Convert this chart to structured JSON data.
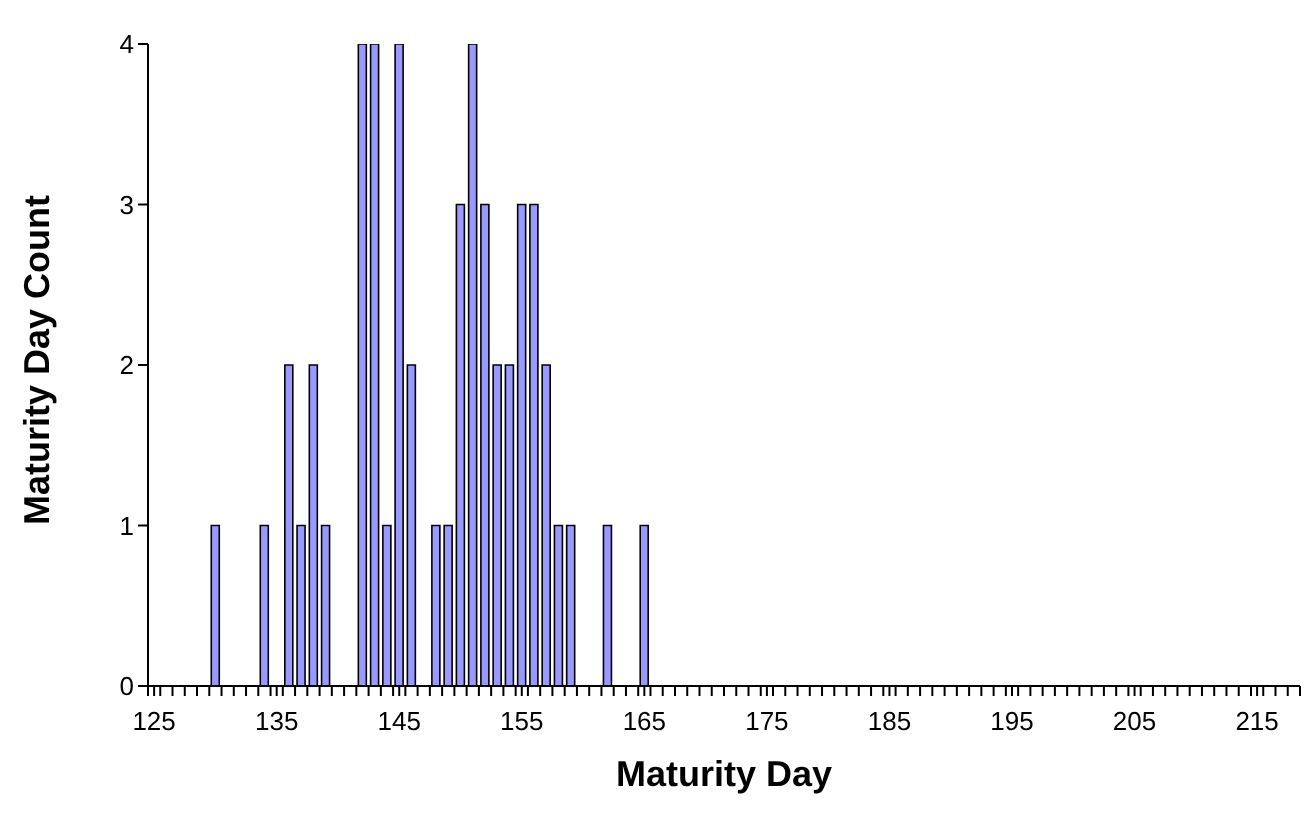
{
  "chart_data": {
    "type": "bar",
    "xlabel": "Maturity Day",
    "ylabel": "Maturity Day Count",
    "color": "#9999ff",
    "x": [
      130,
      134,
      136,
      137,
      138,
      139,
      142,
      143,
      144,
      145,
      146,
      148,
      149,
      150,
      151,
      152,
      153,
      154,
      155,
      156,
      157,
      158,
      159,
      162,
      165
    ],
    "values": [
      1,
      1,
      2,
      1,
      2,
      1,
      4,
      4,
      1,
      4,
      2,
      1,
      1,
      3,
      4,
      3,
      2,
      2,
      3,
      3,
      2,
      1,
      1,
      1,
      1
    ],
    "xlim": [
      124.5,
      218.5
    ],
    "xticks": [
      125,
      135,
      145,
      155,
      165,
      175,
      185,
      195,
      205,
      215,
      {
        "value": 124.5,
        "label": null
      },
      {
        "value": 125.5,
        "label": null
      },
      {
        "value": 126.5,
        "label": null
      },
      {
        "value": 127.5,
        "label": null
      },
      {
        "value": 128.5,
        "label": null
      },
      {
        "value": 129.5,
        "label": null
      },
      {
        "value": 130.5,
        "label": null
      },
      {
        "value": 131.5,
        "label": null
      },
      {
        "value": 132.5,
        "label": null
      },
      {
        "value": 133.5,
        "label": null
      },
      {
        "value": 134.5,
        "label": null
      },
      {
        "value": 135.5,
        "label": null
      },
      {
        "value": 136.5,
        "label": null
      },
      {
        "value": 137.5,
        "label": null
      },
      {
        "value": 138.5,
        "label": null
      },
      {
        "value": 139.5,
        "label": null
      },
      {
        "value": 140.5,
        "label": null
      },
      {
        "value": 141.5,
        "label": null
      },
      {
        "value": 142.5,
        "label": null
      },
      {
        "value": 143.5,
        "label": null
      },
      {
        "value": 144.5,
        "label": null
      },
      {
        "value": 145.5,
        "label": null
      },
      {
        "value": 146.5,
        "label": null
      },
      {
        "value": 147.5,
        "label": null
      },
      {
        "value": 148.5,
        "label": null
      },
      {
        "value": 149.5,
        "label": null
      },
      {
        "value": 150.5,
        "label": null
      },
      {
        "value": 151.5,
        "label": null
      },
      {
        "value": 152.5,
        "label": null
      },
      {
        "value": 153.5,
        "label": null
      },
      {
        "value": 154.5,
        "label": null
      },
      {
        "value": 155.5,
        "label": null
      },
      {
        "value": 156.5,
        "label": null
      },
      {
        "value": 157.5,
        "label": null
      },
      {
        "value": 158.5,
        "label": null
      },
      {
        "value": 159.5,
        "label": null
      },
      {
        "value": 160.5,
        "label": null
      },
      {
        "value": 161.5,
        "label": null
      },
      {
        "value": 162.5,
        "label": null
      },
      {
        "value": 163.5,
        "label": null
      },
      {
        "value": 164.5,
        "label": null
      },
      {
        "value": 165.5,
        "label": null
      },
      {
        "value": 166.5,
        "label": null
      },
      {
        "value": 167.5,
        "label": null
      },
      {
        "value": 168.5,
        "label": null
      },
      {
        "value": 169.5,
        "label": null
      },
      {
        "value": 170.5,
        "label": null
      },
      {
        "value": 171.5,
        "label": null
      },
      {
        "value": 172.5,
        "label": null
      },
      {
        "value": 173.5,
        "label": null
      },
      {
        "value": 174.5,
        "label": null
      },
      {
        "value": 175.5,
        "label": null
      },
      {
        "value": 176.5,
        "label": null
      },
      {
        "value": 177.5,
        "label": null
      },
      {
        "value": 178.5,
        "label": null
      },
      {
        "value": 179.5,
        "label": null
      },
      {
        "value": 180.5,
        "label": null
      },
      {
        "value": 181.5,
        "label": null
      },
      {
        "value": 182.5,
        "label": null
      },
      {
        "value": 183.5,
        "label": null
      },
      {
        "value": 184.5,
        "label": null
      },
      {
        "value": 185.5,
        "label": null
      },
      {
        "value": 186.5,
        "label": null
      },
      {
        "value": 187.5,
        "label": null
      },
      {
        "value": 188.5,
        "label": null
      },
      {
        "value": 189.5,
        "label": null
      },
      {
        "value": 190.5,
        "label": null
      },
      {
        "value": 191.5,
        "label": null
      },
      {
        "value": 192.5,
        "label": null
      },
      {
        "value": 193.5,
        "label": null
      },
      {
        "value": 194.5,
        "label": null
      },
      {
        "value": 195.5,
        "label": null
      },
      {
        "value": 196.5,
        "label": null
      },
      {
        "value": 197.5,
        "label": null
      },
      {
        "value": 198.5,
        "label": null
      },
      {
        "value": 199.5,
        "label": null
      },
      {
        "value": 200.5,
        "label": null
      },
      {
        "value": 201.5,
        "label": null
      },
      {
        "value": 202.5,
        "label": null
      },
      {
        "value": 203.5,
        "label": null
      },
      {
        "value": 204.5,
        "label": null
      },
      {
        "value": 205.5,
        "label": null
      },
      {
        "value": 206.5,
        "label": null
      },
      {
        "value": 207.5,
        "label": null
      },
      {
        "value": 208.5,
        "label": null
      },
      {
        "value": 209.5,
        "label": null
      },
      {
        "value": 210.5,
        "label": null
      },
      {
        "value": 211.5,
        "label": null
      },
      {
        "value": 212.5,
        "label": null
      },
      {
        "value": 213.5,
        "label": null
      },
      {
        "value": 214.5,
        "label": null
      },
      {
        "value": 215.5,
        "label": null
      },
      {
        "value": 216.5,
        "label": null
      },
      {
        "value": 217.5,
        "label": null
      },
      {
        "value": 218.5,
        "label": null
      }
    ],
    "ylim": [
      0,
      4
    ],
    "yticks": [
      0,
      1,
      2,
      3,
      4
    ],
    "grid": false,
    "legend": false
  }
}
